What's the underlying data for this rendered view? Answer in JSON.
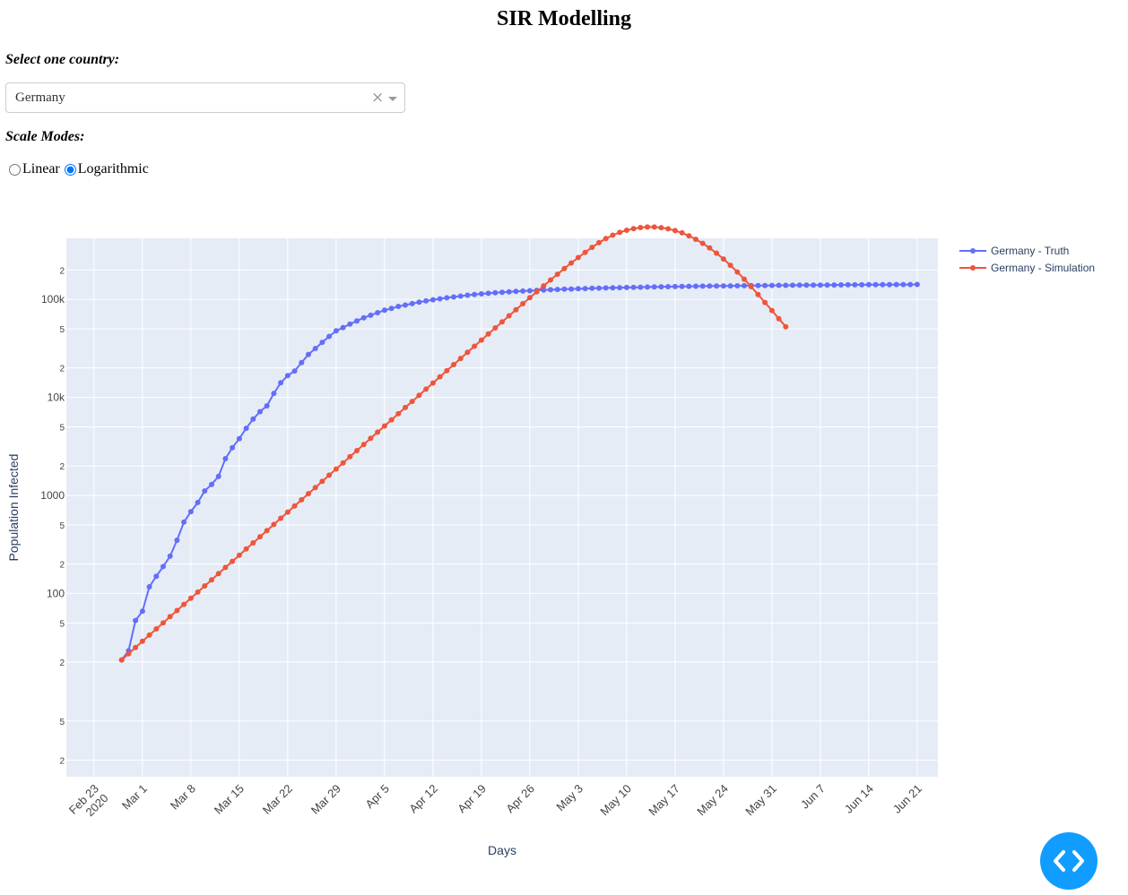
{
  "page": {
    "title": "SIR Modelling",
    "country_label": "Select one country:",
    "country_value": "Germany",
    "clear_glyph": "×",
    "scale_label": "Scale Modes:",
    "scale_options": [
      "Linear",
      "Logarithmic"
    ],
    "scale_selected": "Logarithmic",
    "code_button_icon": "code-icon"
  },
  "chart_data": {
    "type": "line",
    "xlabel": "Days",
    "ylabel": "Population Infected",
    "y_scale": "log",
    "grid": true,
    "legend_position": "top-right",
    "background": "#e5ecf6",
    "x_range": [
      "2020-02-19",
      "2020-06-24"
    ],
    "y_range": [
      1.35,
      420000
    ],
    "x_tick_labels": [
      [
        "Feb 23",
        "2020"
      ],
      [
        "Mar 1"
      ],
      [
        "Mar 8"
      ],
      [
        "Mar 15"
      ],
      [
        "Mar 22"
      ],
      [
        "Mar 29"
      ],
      [
        "Apr 5"
      ],
      [
        "Apr 12"
      ],
      [
        "Apr 19"
      ],
      [
        "Apr 26"
      ],
      [
        "May 3"
      ],
      [
        "May 10"
      ],
      [
        "May 17"
      ],
      [
        "May 24"
      ],
      [
        "May 31"
      ],
      [
        "Jun 7"
      ],
      [
        "Jun 14"
      ],
      [
        "Jun 21"
      ]
    ],
    "x_tick_dates": [
      "2020-02-23",
      "2020-03-01",
      "2020-03-08",
      "2020-03-15",
      "2020-03-22",
      "2020-03-29",
      "2020-04-05",
      "2020-04-12",
      "2020-04-19",
      "2020-04-26",
      "2020-05-03",
      "2020-05-10",
      "2020-05-17",
      "2020-05-24",
      "2020-05-31",
      "2020-06-07",
      "2020-06-14",
      "2020-06-21"
    ],
    "y_major_ticks": [
      {
        "value": 100,
        "label": "100"
      },
      {
        "value": 1000,
        "label": "1000"
      },
      {
        "value": 10000,
        "label": "10k"
      },
      {
        "value": 100000,
        "label": "100k"
      }
    ],
    "y_minor_ticks": [
      {
        "value": 2,
        "label": "2"
      },
      {
        "value": 5,
        "label": "5"
      },
      {
        "value": 20,
        "label": "2"
      },
      {
        "value": 50,
        "label": "5"
      },
      {
        "value": 200,
        "label": "2"
      },
      {
        "value": 500,
        "label": "5"
      },
      {
        "value": 2000,
        "label": "2"
      },
      {
        "value": 5000,
        "label": "5"
      },
      {
        "value": 20000,
        "label": "2"
      },
      {
        "value": 50000,
        "label": "5"
      },
      {
        "value": 200000,
        "label": "2"
      }
    ],
    "series": [
      {
        "name": "Germany - Truth",
        "color": "#636efa",
        "start_date": "2020-02-27",
        "values": [
          21,
          26,
          53,
          66,
          117,
          150,
          188,
          240,
          349,
          534,
          684,
          847,
          1112,
          1296,
          1567,
          2369,
          3062,
          3795,
          4838,
          6012,
          7156,
          8198,
          10999,
          14138,
          16662,
          18610,
          22672,
          27436,
          31554,
          36508,
          41903,
          47806,
          51588,
          55976,
          60367,
          64928,
          68876,
          73203,
          77464,
          80841,
          84789,
          87547,
          90608,
          93767,
          96543,
          99045,
          101401,
          103911,
          105928,
          108061,
          110278,
          112165,
          113912,
          115439,
          116862,
          118152,
          119400,
          120572,
          121661,
          122690,
          123653,
          124559,
          125414,
          126221,
          126986,
          127709,
          128397,
          129047,
          129666,
          130254,
          130812,
          131346,
          131853,
          132338,
          132801,
          133240,
          133661,
          134062,
          134446,
          134813,
          135165,
          135501,
          135824,
          136133,
          136430,
          136715,
          136989,
          137253,
          137507,
          137752,
          137988,
          138216,
          138436,
          138649,
          138855,
          139054,
          139247,
          139434,
          139616,
          139792,
          139963,
          140129,
          140291,
          140448,
          140601,
          140750,
          140895,
          141036,
          141174,
          141308,
          141439,
          141567,
          141691,
          141813,
          141932,
          142048
        ]
      },
      {
        "name": "Germany - Simulation",
        "color": "#ef553b",
        "start_date": "2020-02-27",
        "values": [
          21,
          24.3,
          28.1,
          32.5,
          37.6,
          43.5,
          50.2,
          58.0,
          67.0,
          77.4,
          89.4,
          103.3,
          119.4,
          137.9,
          159.3,
          184.1,
          212.7,
          245.8,
          284.0,
          328.2,
          379.2,
          438.2,
          506.4,
          585.1,
          676.1,
          781.2,
          902.7,
          1043.0,
          1205.2,
          1392.5,
          1609.1,
          1859.3,
          2148.3,
          2482.3,
          2868.1,
          3313.8,
          3828.7,
          4423.6,
          5110.8,
          5904.6,
          6821.6,
          7880.6,
          9103.9,
          10517,
          12149,
          14034,
          16211,
          18724,
          21625,
          24973,
          28836,
          33292,
          38430,
          44352,
          51175,
          59029,
          68064,
          78447,
          90364,
          104020,
          119640,
          137460,
          157700,
          180710,
          206460,
          235240,
          267090,
          301900,
          339610,
          378820,
          417190,
          451970,
          482440,
          507850,
          527510,
          540870,
          547510,
          547000,
          539310,
          524700,
          503710,
          477050,
          445630,
          410710,
          373290,
          334640,
          296010,
          258510,
          223060,
          190360,
          160850,
          134800,
          112280,
          93120,
          77000,
          63660,
          52620
        ]
      }
    ]
  }
}
